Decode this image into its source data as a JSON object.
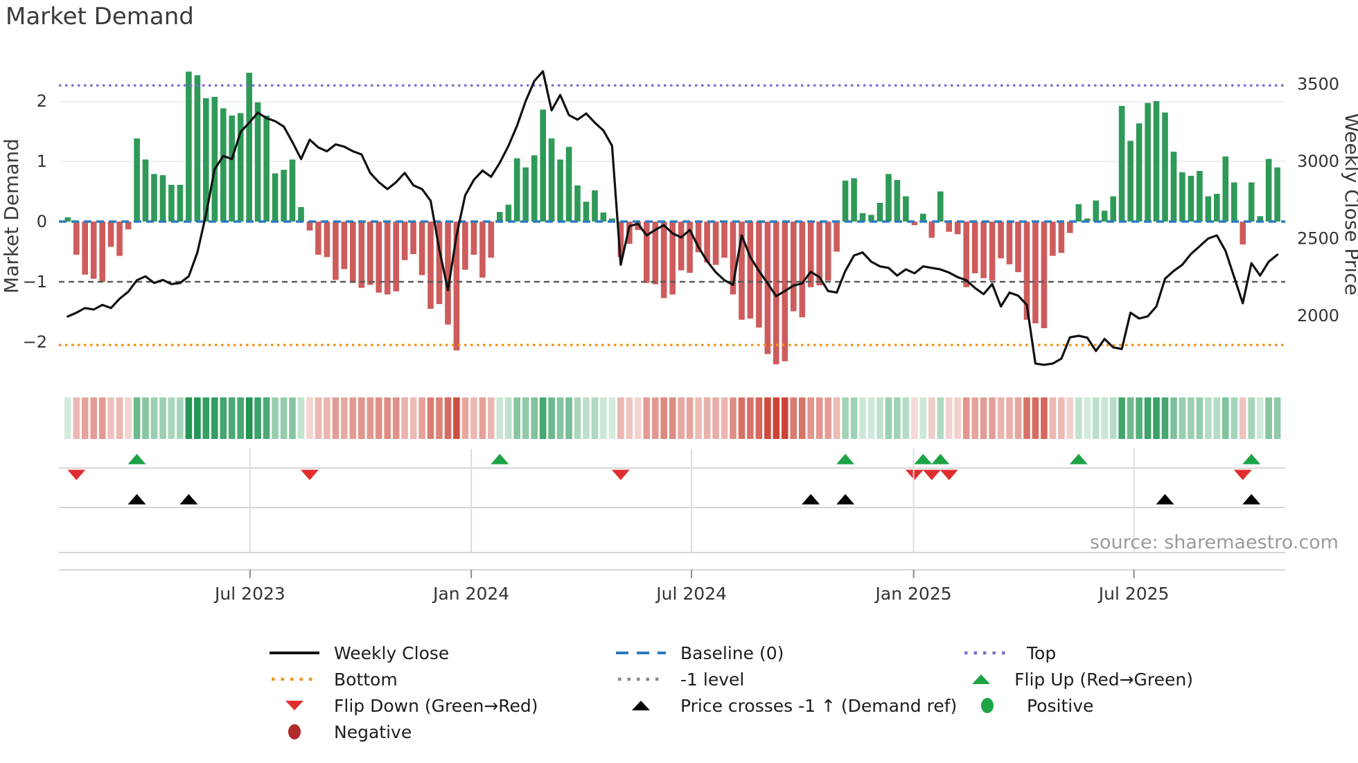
{
  "title": "Market Demand",
  "source_note": "source: sharemaestro.com",
  "axes": {
    "y_left": {
      "label": "Market Demand",
      "tick_labels": [
        "2",
        "1",
        "0",
        "−1",
        "−2"
      ],
      "tick_values": [
        2,
        1,
        0,
        -1,
        -2
      ]
    },
    "y_right": {
      "label": "Weekly Close Price",
      "tick_labels": [
        "3500",
        "3000",
        "2500",
        "2000"
      ],
      "tick_values": [
        3500,
        3000,
        2500,
        2000
      ]
    },
    "x": {
      "tick_labels": [
        "Jul 2023",
        "Jan 2024",
        "Jul 2024",
        "Jan 2025",
        "Jul 2025"
      ],
      "tick_weeks": [
        21.1,
        46.7,
        72.2,
        97.9,
        123.4
      ]
    }
  },
  "chart_data": {
    "type": "bar",
    "title": "Market Demand",
    "xlabel": "",
    "ylabel": "Market Demand",
    "y2label": "Weekly Close Price",
    "ylim": [
      -2.6,
      2.85
    ],
    "y2lim": [
      1610,
      3780
    ],
    "grid": "horizontal-faint",
    "legend_position": "bottom",
    "reference_lines": {
      "top": 2.26,
      "baseline": 0,
      "minus_one_level": -1,
      "bottom": -2.05
    },
    "series": [
      {
        "name": "Market Demand",
        "type": "bar",
        "axis": "left",
        "values": [
          0.07,
          -0.55,
          -0.88,
          -0.95,
          -1.0,
          -0.42,
          -0.57,
          -0.13,
          1.38,
          1.03,
          0.79,
          0.77,
          0.61,
          0.61,
          2.49,
          2.43,
          2.05,
          2.07,
          1.88,
          1.76,
          1.8,
          2.47,
          1.98,
          1.76,
          0.8,
          0.86,
          1.03,
          0.24,
          -0.15,
          -0.55,
          -0.59,
          -0.97,
          -0.79,
          -1.02,
          -1.1,
          -1.05,
          -1.18,
          -1.21,
          -1.16,
          -0.64,
          -0.54,
          -0.89,
          -1.45,
          -1.37,
          -1.71,
          -2.14,
          -0.8,
          -0.55,
          -0.93,
          -0.6,
          0.16,
          0.28,
          1.05,
          0.9,
          1.1,
          1.86,
          1.38,
          1.03,
          1.24,
          0.6,
          0.33,
          0.52,
          0.15,
          0.05,
          -0.59,
          -0.37,
          -0.14,
          -1.02,
          -1.04,
          -1.27,
          -1.21,
          -0.81,
          -0.85,
          -0.51,
          -0.68,
          -0.72,
          -0.6,
          -1.21,
          -1.63,
          -1.61,
          -1.76,
          -2.2,
          -2.37,
          -2.32,
          -1.49,
          -1.59,
          -1.09,
          -1.06,
          -0.98,
          -0.5,
          0.68,
          0.72,
          0.14,
          0.11,
          0.31,
          0.79,
          0.69,
          0.42,
          -0.06,
          0.13,
          -0.27,
          0.5,
          -0.17,
          -0.21,
          -1.09,
          -0.86,
          -0.94,
          -0.98,
          -0.61,
          -0.71,
          -0.84,
          -1.63,
          -1.69,
          -1.77,
          -0.57,
          -0.52,
          -0.19,
          0.29,
          0.05,
          0.35,
          0.18,
          0.42,
          1.92,
          1.34,
          1.63,
          1.97,
          2.0,
          1.81,
          1.16,
          0.82,
          0.76,
          0.84,
          0.42,
          0.46,
          1.08,
          0.65,
          -0.38,
          0.65,
          0.09,
          1.04,
          0.9
        ]
      },
      {
        "name": "Weekly Close",
        "type": "line",
        "axis": "right",
        "values": [
          1995,
          2020,
          2050,
          2040,
          2070,
          2050,
          2110,
          2155,
          2230,
          2255,
          2212,
          2232,
          2205,
          2212,
          2255,
          2410,
          2655,
          2950,
          3035,
          3015,
          3190,
          3250,
          3315,
          3280,
          3260,
          3225,
          3125,
          3015,
          3140,
          3090,
          3065,
          3110,
          3095,
          3065,
          3045,
          2925,
          2865,
          2820,
          2865,
          2925,
          2845,
          2820,
          2745,
          2430,
          2165,
          2520,
          2780,
          2880,
          2940,
          2900,
          2990,
          3100,
          3230,
          3390,
          3520,
          3583,
          3330,
          3430,
          3300,
          3270,
          3310,
          3250,
          3200,
          3100,
          2330,
          2580,
          2596,
          2520,
          2556,
          2587,
          2533,
          2507,
          2556,
          2444,
          2354,
          2282,
          2230,
          2200,
          2520,
          2380,
          2290,
          2210,
          2126,
          2160,
          2195,
          2210,
          2285,
          2250,
          2160,
          2150,
          2290,
          2390,
          2410,
          2350,
          2320,
          2310,
          2260,
          2300,
          2275,
          2320,
          2310,
          2300,
          2280,
          2250,
          2230,
          2180,
          2140,
          2205,
          2060,
          2150,
          2130,
          2070,
          1690,
          1682,
          1690,
          1722,
          1860,
          1870,
          1858,
          1772,
          1850,
          1795,
          1785,
          2020,
          1982,
          1996,
          2060,
          2240,
          2290,
          2330,
          2400,
          2450,
          2500,
          2520,
          2420,
          2250,
          2081,
          2341,
          2260,
          2350,
          2395
        ]
      }
    ],
    "heat_strip": "signed intensity of Market Demand bar values (green positive, red negative)",
    "markers": {
      "flip_up_weeks": [
        8,
        50,
        90,
        99,
        101,
        117,
        137
      ],
      "flip_down_weeks": [
        1,
        28,
        64,
        98,
        100,
        102,
        136
      ],
      "price_cross_weeks": [
        8,
        14,
        86,
        90,
        127,
        137
      ]
    }
  },
  "legend": {
    "items": [
      {
        "label": "Weekly Close",
        "symbol": "solid-line",
        "color": "#111111"
      },
      {
        "label": "Baseline (0)",
        "symbol": "dashed-line",
        "color": "#2b7bba"
      },
      {
        "label": "Top",
        "symbol": "dotted-line",
        "color": "#7b6fd4"
      },
      {
        "label": "Bottom",
        "symbol": "dotted-line",
        "color": "#f0941f"
      },
      {
        "label": "-1 level",
        "symbol": "dotted-line",
        "color": "#888888"
      },
      {
        "label": "Flip Up (Red→Green)",
        "symbol": "triangle-up",
        "color": "#1da346"
      },
      {
        "label": "Flip Down (Green→Red)",
        "symbol": "triangle-down",
        "color": "#e02d2d"
      },
      {
        "label": "Price crosses -1 ↑ (Demand ref)",
        "symbol": "triangle-up",
        "color": "#000000"
      },
      {
        "label": "Positive",
        "symbol": "circle",
        "color": "#1da346"
      },
      {
        "label": "Negative",
        "symbol": "circle",
        "color": "#b22a2a"
      }
    ]
  },
  "colors": {
    "bar_positive": "#2f9a58",
    "bar_negative": "#cd5c5c",
    "price_line": "#111111",
    "baseline": "#2b7bba",
    "top_line": "#7b6fd4",
    "bottom_line": "#f0941f",
    "minus_one_line": "#5a5a5a",
    "flip_up": "#1da346",
    "flip_down": "#e02d2d",
    "price_cross": "#000000",
    "heat_green_rgb": "34,150,84",
    "heat_red_rgb": "203,68,54",
    "grid_faint": "#e9e9f2",
    "separator": "#c9c9c9",
    "tick_text": "#333333",
    "source_text": "#9a9a9a"
  }
}
